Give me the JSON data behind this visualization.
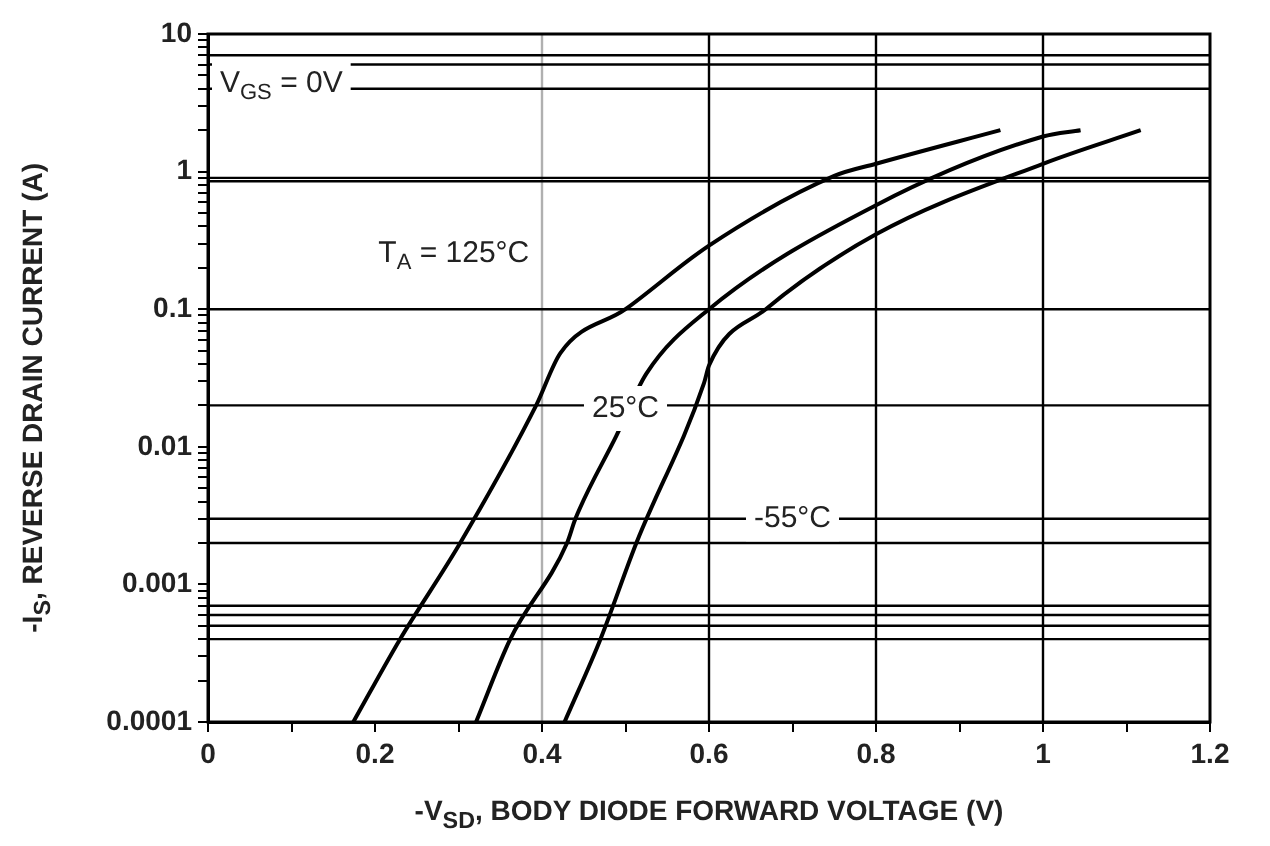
{
  "chart_data": {
    "type": "line",
    "xlabel": "-V$_{SD}$, BODY DIODE FORWARD VOLTAGE (V)",
    "ylabel": "-I$_{S}$, REVERSE DRAIN CURRENT (A)",
    "log": "y",
    "legend": false,
    "marker": "none",
    "line_style": "solid",
    "xlim": [
      0,
      1.2
    ],
    "ylim": [
      0.0001,
      10
    ],
    "xticks": [
      0,
      {
        "value": 0.1,
        "label": null
      },
      0.2,
      {
        "value": 0.3,
        "label": null
      },
      0.4,
      {
        "value": 0.5,
        "label": null
      },
      0.6,
      {
        "value": 0.7,
        "label": null
      },
      0.8,
      {
        "value": 0.9,
        "label": null
      },
      1,
      {
        "value": 1.1,
        "label": null
      },
      1.2
    ],
    "yticks": [
      0.0001,
      {
        "value": 0.0002,
        "label": null
      },
      {
        "value": 0.0003,
        "label": null
      },
      {
        "value": 0.0004,
        "label": null
      },
      {
        "value": 0.0005,
        "label": null
      },
      {
        "value": 0.0006,
        "label": null
      },
      {
        "value": 0.0007,
        "label": null
      },
      {
        "value": 0.0008,
        "label": null
      },
      {
        "value": 0.0009,
        "label": null
      },
      0.001,
      {
        "value": 0.002,
        "label": null
      },
      {
        "value": 0.003,
        "label": null
      },
      {
        "value": 0.004,
        "label": null
      },
      {
        "value": 0.005,
        "label": null
      },
      {
        "value": 0.006,
        "label": null
      },
      {
        "value": 0.007,
        "label": null
      },
      {
        "value": 0.008,
        "label": null
      },
      {
        "value": 0.009,
        "label": null
      },
      0.01,
      {
        "value": 0.02,
        "label": null
      },
      {
        "value": 0.03,
        "label": null
      },
      {
        "value": 0.04,
        "label": null
      },
      {
        "value": 0.05,
        "label": null
      },
      {
        "value": 0.06,
        "label": null
      },
      {
        "value": 0.07,
        "label": null
      },
      {
        "value": 0.08,
        "label": null
      },
      {
        "value": 0.09,
        "label": null
      },
      0.1,
      {
        "value": 0.2,
        "label": null
      },
      {
        "value": 0.3,
        "label": null
      },
      {
        "value": 0.4,
        "label": null
      },
      {
        "value": 0.5,
        "label": null
      },
      {
        "value": 0.6,
        "label": null
      },
      {
        "value": 0.7,
        "label": null
      },
      {
        "value": 0.8,
        "label": null
      },
      {
        "value": 0.9,
        "label": null
      },
      1,
      {
        "value": 2,
        "label": null
      },
      {
        "value": 3,
        "label": null
      },
      {
        "value": 4,
        "label": null
      },
      {
        "value": 5,
        "label": null
      },
      {
        "value": 6,
        "label": null
      },
      {
        "value": 7,
        "label": null
      },
      {
        "value": 8,
        "label": null
      },
      {
        "value": 9,
        "label": null
      },
      10
    ],
    "series": [
      {
        "color": "#000000",
        "x": [
          0.174,
          0.23,
          0.302,
          0.393,
          0.422,
          0.5,
          0.6,
          0.75,
          0.8,
          0.949
        ],
        "values": [
          0.0001,
          0.0004,
          0.002,
          0.02,
          0.048,
          0.1,
          0.29,
          0.93,
          1.14,
          2
        ]
      },
      {
        "color": "#000000",
        "x": [
          0.321,
          0.362,
          0.43,
          0.44,
          0.489,
          0.525,
          0.6,
          0.8,
          1.0,
          1.045
        ],
        "values": [
          0.0001,
          0.0004,
          0.002,
          0.003,
          0.012,
          0.034,
          0.1,
          0.57,
          1.8,
          2
        ]
      },
      {
        "color": "#000000",
        "x": [
          0.427,
          0.47,
          0.513,
          0.594,
          0.6,
          0.668,
          0.8,
          1.0,
          1.117
        ],
        "values": [
          0.0001,
          0.0004,
          0.002,
          0.029,
          0.039,
          0.1,
          0.35,
          1.14,
          2
        ]
      }
    ],
    "ref_lines": [
      {
        "axis": "x",
        "value": 0.4,
        "color": "#b0b0b0"
      },
      {
        "axis": "x",
        "value": 0.6,
        "color": "#000000"
      },
      {
        "axis": "x",
        "value": 0.8,
        "color": "#000000"
      },
      {
        "axis": "x",
        "value": 1,
        "color": "#000000"
      },
      {
        "axis": "y",
        "value": 7,
        "color": "#000000"
      },
      {
        "axis": "y",
        "value": 6,
        "color": "#000000"
      },
      {
        "axis": "y",
        "value": 4,
        "color": "#000000"
      },
      {
        "axis": "y",
        "value": 0.9,
        "color": "#000000"
      },
      {
        "axis": "y",
        "value": 0.85,
        "color": "#000000"
      },
      {
        "axis": "y",
        "value": 0.1,
        "color": "#000000"
      },
      {
        "axis": "y",
        "value": 0.02,
        "color": "#000000"
      },
      {
        "axis": "y",
        "value": 0.003,
        "color": "#000000"
      },
      {
        "axis": "y",
        "value": 0.002,
        "color": "#000000"
      },
      {
        "axis": "y",
        "value": 0.0007,
        "color": "#000000"
      },
      {
        "axis": "y",
        "value": 0.0006,
        "color": "#000000"
      },
      {
        "axis": "y",
        "value": 0.0005,
        "color": "#000000"
      },
      {
        "axis": "y",
        "value": 0.0004,
        "color": "#000000"
      }
    ],
    "annotations": [
      "V$_{GS}$ = 0V",
      "T$_{A}$ = 125°C",
      {
        "text": "25°C",
        "x": 0.5,
        "y": 0.019
      },
      {
        "text": "-55°C",
        "x": 0.7,
        "y": 0.003
      }
    ]
  }
}
